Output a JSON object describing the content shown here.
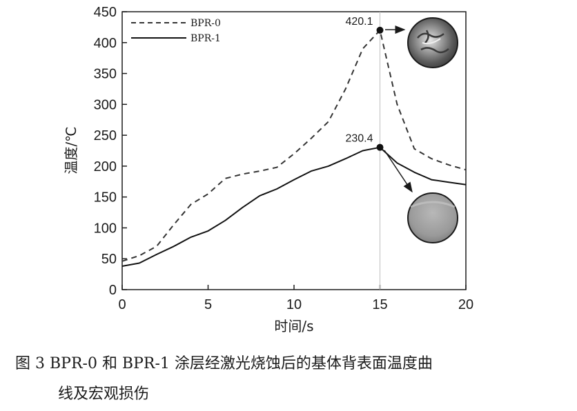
{
  "chart_data": {
    "type": "line",
    "xlabel": "时间/s",
    "ylabel": "温度/℃",
    "xlim": [
      0,
      20
    ],
    "ylim": [
      0,
      450
    ],
    "xticks": [
      0,
      5,
      10,
      15,
      20
    ],
    "yticks": [
      0,
      50,
      100,
      150,
      200,
      250,
      300,
      350,
      400,
      450
    ],
    "grid": false,
    "legend": "top-left",
    "series": [
      {
        "name": "BPR-0",
        "style": "dashed",
        "color": "#333333",
        "x": [
          0,
          1,
          2,
          3,
          4,
          5,
          6,
          7,
          8,
          9,
          10,
          11,
          12,
          13,
          14,
          15,
          16,
          17,
          18,
          19,
          20
        ],
        "y": [
          46,
          55,
          70,
          105,
          138,
          155,
          180,
          187,
          192,
          198,
          220,
          245,
          272,
          325,
          390,
          420.1,
          300,
          228,
          212,
          202,
          194
        ]
      },
      {
        "name": "BPR-1",
        "style": "solid",
        "color": "#111111",
        "x": [
          0,
          1,
          2,
          3,
          4,
          5,
          6,
          7,
          8,
          9,
          10,
          11,
          12,
          13,
          14,
          15,
          16,
          17,
          18,
          19,
          20
        ],
        "y": [
          38,
          43,
          57,
          70,
          85,
          95,
          112,
          133,
          152,
          163,
          178,
          192,
          200,
          212,
          225,
          230.4,
          205,
          190,
          178,
          174,
          170
        ]
      }
    ],
    "annotations": [
      {
        "series": "BPR-0",
        "x": 15,
        "y": 420.1,
        "label": "420.1"
      },
      {
        "series": "BPR-1",
        "x": 15,
        "y": 230.4,
        "label": "230.4"
      }
    ],
    "vertical_line_x": 15
  },
  "caption": {
    "line1": "图 3  BPR-0 和 BPR-1 涂层经激光烧蚀后的基体背表面温度曲",
    "line2": "线及宏观损伤"
  },
  "colors": {
    "axis": "#1a1a1a",
    "damage_heavy": "#8c8c8c",
    "damage_light": "#a8a8a8"
  }
}
